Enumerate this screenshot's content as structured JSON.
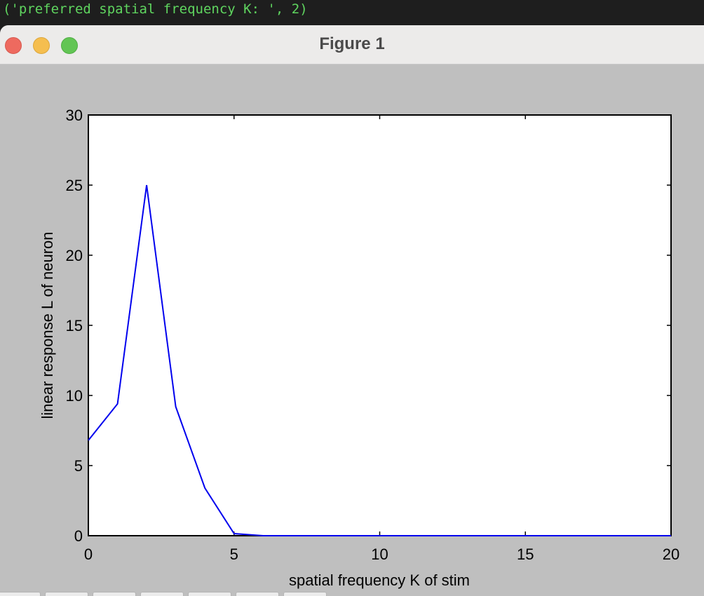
{
  "terminal": {
    "output": "('preferred spatial frequency K: ', 2)"
  },
  "window": {
    "title": "Figure 1",
    "controls": [
      "close",
      "minimize",
      "zoom"
    ]
  },
  "colors": {
    "line": "#0000ee",
    "figure_background": "#bfbfbf",
    "terminal_text": "#5fd55f"
  },
  "chart_data": {
    "type": "line",
    "xlabel": "spatial frequency K of stim",
    "ylabel": "linear response L of neuron",
    "xlim": [
      0,
      20
    ],
    "ylim": [
      0,
      30
    ],
    "xticks": [
      0,
      5,
      10,
      15,
      20
    ],
    "yticks": [
      0,
      5,
      10,
      15,
      20,
      25,
      30
    ],
    "grid": false,
    "series": [
      {
        "x": [
          0,
          1,
          2,
          3,
          4,
          5,
          6,
          7,
          8,
          9,
          10,
          11,
          12,
          13,
          14,
          15,
          16,
          17,
          18,
          19,
          20
        ],
        "y": [
          6.8,
          9.4,
          25.0,
          9.2,
          3.4,
          0.15,
          0.0,
          0.0,
          0.0,
          0.0,
          0.0,
          0.0,
          0.0,
          0.0,
          0.0,
          0.0,
          0.0,
          0.0,
          0.0,
          0.0,
          0.0
        ]
      }
    ]
  },
  "toolbar": {
    "buttons": [
      "home-icon",
      "back-icon",
      "forward-icon",
      "pan-icon",
      "zoom-icon",
      "configure-icon",
      "save-icon"
    ]
  }
}
